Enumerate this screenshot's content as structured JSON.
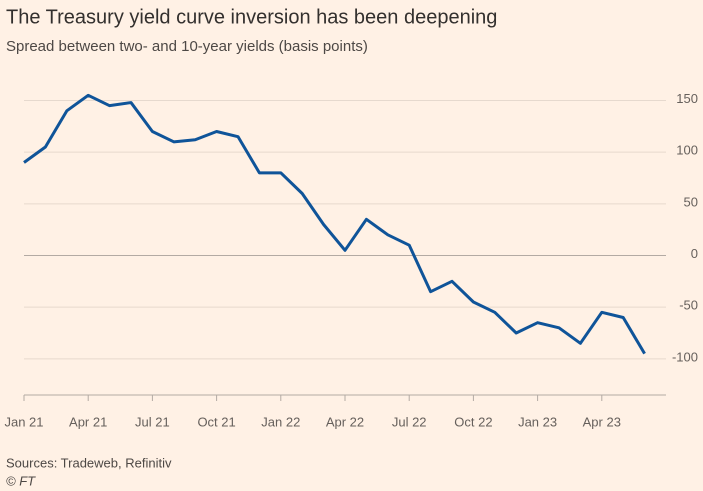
{
  "chart_data": {
    "type": "line",
    "title": "The Treasury yield curve inversion has been deepening",
    "subtitle": "Spread between two- and 10-year yields (basis points)",
    "source": "Sources: Tradeweb, Refinitiv",
    "credit": "© FT",
    "x": [
      "2021-01",
      "2021-02",
      "2021-03",
      "2021-04",
      "2021-05",
      "2021-06",
      "2021-07",
      "2021-08",
      "2021-09",
      "2021-10",
      "2021-11",
      "2021-12",
      "2022-01",
      "2022-02",
      "2022-03",
      "2022-04",
      "2022-05",
      "2022-06",
      "2022-07",
      "2022-08",
      "2022-09",
      "2022-10",
      "2022-11",
      "2022-12",
      "2023-01",
      "2023-02",
      "2023-03",
      "2023-04",
      "2023-05",
      "2023-06"
    ],
    "series": [
      {
        "name": "Spread",
        "color": "#0f5499",
        "values": [
          90,
          105,
          140,
          155,
          145,
          148,
          120,
          110,
          112,
          120,
          115,
          80,
          80,
          60,
          30,
          5,
          35,
          20,
          10,
          -35,
          -25,
          -45,
          -55,
          -75,
          -65,
          -70,
          -85,
          -55,
          -60,
          -95
        ]
      }
    ],
    "xlim": [
      "2021-01",
      "2023-07"
    ],
    "xticks": [
      {
        "value": "2021-01",
        "label": "Jan 21"
      },
      {
        "value": "2021-04",
        "label": "Apr 21"
      },
      {
        "value": "2021-07",
        "label": "Jul 21"
      },
      {
        "value": "2021-10",
        "label": "Oct 21"
      },
      {
        "value": "2022-01",
        "label": "Jan 22"
      },
      {
        "value": "2022-04",
        "label": "Apr 22"
      },
      {
        "value": "2022-07",
        "label": "Jul 22"
      },
      {
        "value": "2022-10",
        "label": "Oct 22"
      },
      {
        "value": "2023-01",
        "label": "Jan 23"
      },
      {
        "value": "2023-04",
        "label": "Apr 23"
      }
    ],
    "ylim": [
      -135,
      165
    ],
    "yticks": [
      150,
      100,
      50,
      0,
      -50,
      -100
    ],
    "grid": true
  }
}
